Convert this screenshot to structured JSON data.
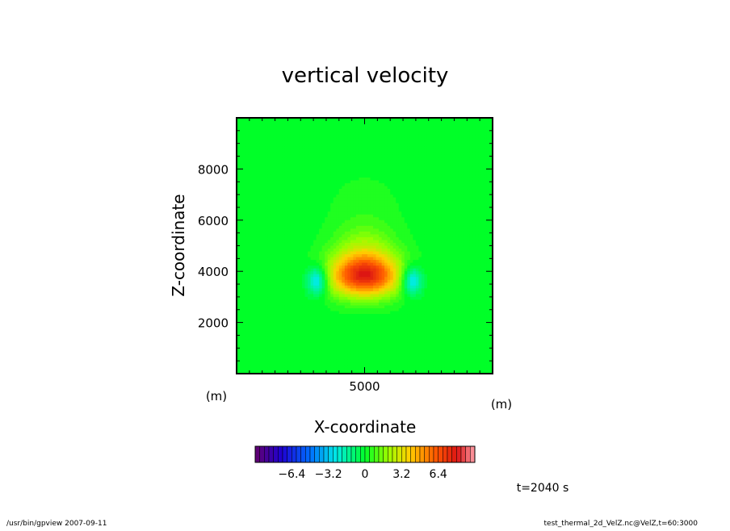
{
  "chart_data": {
    "type": "heatmap",
    "title": "vertical velocity",
    "xlabel": "X-coordinate",
    "ylabel": "Z-coordinate",
    "x_unit": "(m)",
    "y_unit": "(m)",
    "xlim": [
      0,
      10000
    ],
    "ylim": [
      0,
      10000
    ],
    "x_ticks": [
      5000
    ],
    "y_ticks": [
      2000,
      4000,
      6000,
      8000
    ],
    "colorbar": {
      "range": [
        -9.6,
        9.6
      ],
      "step": 0.4,
      "ticks": [
        -6.4,
        -3.2,
        0,
        3.2,
        6.4
      ],
      "tick_labels": [
        "−6.4",
        "−3.2",
        "0",
        "3.2",
        "6.4"
      ]
    },
    "features": [
      {
        "x": 5000,
        "z": 3800,
        "value": 7.0,
        "sx": 1400,
        "sz": 800
      },
      {
        "x": 5000,
        "z": 4700,
        "value": 2.0,
        "sx": 1200,
        "sz": 1000
      },
      {
        "x": 3150,
        "z": 3650,
        "value": -3.6,
        "sx": 420,
        "sz": 560
      },
      {
        "x": 6850,
        "z": 3650,
        "value": -3.6,
        "sx": 420,
        "sz": 560
      },
      {
        "x": 5000,
        "z": 6300,
        "value": 0.4,
        "sx": 1500,
        "sz": 1600
      }
    ],
    "time_label": "t=2040 s"
  },
  "footer": {
    "left": "/usr/bin/gpview   2007-09-11",
    "right": "test_thermal_2d_VelZ.nc@VelZ,t=60:3000"
  }
}
